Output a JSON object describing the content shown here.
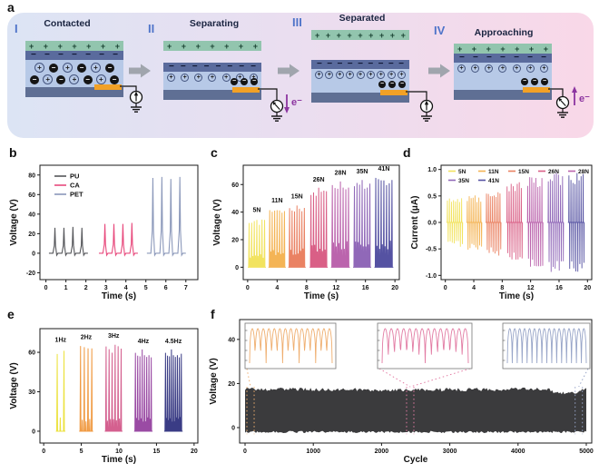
{
  "panel_a": {
    "label": "a",
    "stages": [
      {
        "numeral": "I",
        "title": "Contacted"
      },
      {
        "numeral": "II",
        "title": "Separating"
      },
      {
        "numeral": "III",
        "title": "Separated"
      },
      {
        "numeral": "IV",
        "title": "Approaching"
      }
    ],
    "symbols": {
      "plus": "+",
      "minus": "−",
      "circled_plus": "⊕",
      "circled_minus": "−",
      "electron": "e⁻"
    },
    "colors": {
      "bg_left": "#dce4f4",
      "bg_mid": "#eadef0",
      "bg_right": "#f9d8e8",
      "top_layer": "#92c5ae",
      "charged_layer": "#5a6b9d",
      "dielectric": "#b7c9e7",
      "electrode": "#f2a126",
      "bottom_electrode": "#5f6f94",
      "numeral": "#4f74c9",
      "title": "#1a2440",
      "arrow": "#a0a5ad",
      "electron_flow": "#8c35a0"
    }
  },
  "panel_labels": {
    "b": "b",
    "c": "c",
    "d": "d",
    "e": "e",
    "f": "f"
  },
  "chart_data": [
    {
      "panel": "b",
      "type": "line",
      "xlabel": "Time (s)",
      "ylabel": "Voltage (V)",
      "xlim": [
        -0.3,
        7.6
      ],
      "ylim": [
        -27,
        90
      ],
      "xticks": [
        0,
        1,
        2,
        3,
        4,
        5,
        6,
        7
      ],
      "yticks": [
        -20,
        0,
        20,
        40,
        60,
        80
      ],
      "legend": {
        "position": "top-left"
      },
      "series": [
        {
          "name": "PU",
          "color": "#55565a",
          "peaks": [
            [
              0.45,
              26
            ],
            [
              0.9,
              26
            ],
            [
              1.35,
              27
            ],
            [
              1.8,
              26
            ]
          ]
        },
        {
          "name": "CA",
          "color": "#e84a7d",
          "peaks": [
            [
              2.95,
              30
            ],
            [
              3.4,
              30
            ],
            [
              3.85,
              30
            ],
            [
              4.3,
              31
            ]
          ]
        },
        {
          "name": "PET",
          "color": "#8b98ba",
          "peaks": [
            [
              5.35,
              77
            ],
            [
              5.8,
              78
            ],
            [
              6.25,
              76
            ],
            [
              6.7,
              78
            ]
          ]
        }
      ]
    },
    {
      "panel": "c",
      "type": "spike-groups",
      "xlabel": "Time (s)",
      "ylabel": "Voltage (V)",
      "xlim": [
        -0.6,
        20.6
      ],
      "ylim": [
        -9,
        74
      ],
      "xticks": [
        0,
        4,
        8,
        12,
        16,
        20
      ],
      "yticks": [
        0,
        20,
        40,
        60
      ],
      "groups": [
        {
          "label": "5N",
          "color": "#f2e35f",
          "t": [
            0.2,
            2.3
          ],
          "n": 7,
          "amp": 33
        },
        {
          "label": "11N",
          "color": "#f4b455",
          "t": [
            3.0,
            5.0
          ],
          "n": 7,
          "amp": 40
        },
        {
          "label": "15N",
          "color": "#ea8263",
          "t": [
            5.7,
            7.7
          ],
          "n": 7,
          "amp": 43
        },
        {
          "label": "26N",
          "color": "#d95f86",
          "t": [
            8.6,
            10.7
          ],
          "n": 7,
          "amp": 55
        },
        {
          "label": "28N",
          "color": "#bb64ad",
          "t": [
            11.5,
            13.7
          ],
          "n": 7,
          "amp": 60
        },
        {
          "label": "35N",
          "color": "#9068b8",
          "t": [
            14.5,
            16.6
          ],
          "n": 7,
          "amp": 61
        },
        {
          "label": "41N",
          "color": "#5552a2",
          "t": [
            17.4,
            19.6
          ],
          "n": 7,
          "amp": 63
        }
      ]
    },
    {
      "panel": "d",
      "type": "bipolar-groups",
      "xlabel": "Time (s)",
      "ylabel": "Current (μA)",
      "xlim": [
        -0.6,
        20.6
      ],
      "ylim": [
        -1.08,
        1.08
      ],
      "xticks": [
        0,
        4,
        8,
        12,
        16,
        20
      ],
      "yticks": [
        -1.0,
        -0.5,
        0.0,
        0.5,
        1.0
      ],
      "ydecimals": 1,
      "legend": {
        "rows": [
          [
            "5N",
            "11N",
            "15N",
            "26N",
            "28N"
          ],
          [
            "35N",
            "41N"
          ]
        ]
      },
      "groups": [
        {
          "label": "5N",
          "color": "#f2e35f",
          "t": [
            0.3,
            2.3
          ],
          "n": 8,
          "amp": 0.4
        },
        {
          "label": "11N",
          "color": "#f4b455",
          "t": [
            3.1,
            5.0
          ],
          "n": 8,
          "amp": 0.45
        },
        {
          "label": "15N",
          "color": "#ea8263",
          "t": [
            5.8,
            7.7
          ],
          "n": 8,
          "amp": 0.55
        },
        {
          "label": "26N",
          "color": "#d95f86",
          "t": [
            8.7,
            10.7
          ],
          "n": 8,
          "amp": 0.67
        },
        {
          "label": "28N",
          "color": "#bb64ad",
          "t": [
            11.6,
            13.6
          ],
          "n": 8,
          "amp": 0.75
        },
        {
          "label": "35N",
          "color": "#9068b8",
          "t": [
            14.5,
            16.5
          ],
          "n": 8,
          "amp": 0.82
        },
        {
          "label": "41N",
          "color": "#5552a2",
          "t": [
            17.4,
            19.4
          ],
          "n": 8,
          "amp": 0.83
        }
      ]
    },
    {
      "panel": "e",
      "type": "spike-groups",
      "xlabel": "Time (s)",
      "ylabel": "Voltage (V)",
      "xlim": [
        -0.5,
        20.5
      ],
      "ylim": [
        -9,
        78
      ],
      "xticks": [
        0,
        5,
        10,
        15,
        20
      ],
      "yticks": [
        0,
        30,
        60
      ],
      "groups": [
        {
          "label": "1Hz",
          "color": "#ece23f",
          "t": [
            1.8,
            2.7
          ],
          "n": 2,
          "amp": 61
        },
        {
          "label": "2Hz",
          "color": "#f09a42",
          "t": [
            4.9,
            6.4
          ],
          "n": 4,
          "amp": 63
        },
        {
          "label": "3Hz",
          "color": "#d4608f",
          "t": [
            8.3,
            10.3
          ],
          "n": 6,
          "amp": 64
        },
        {
          "label": "4Hz",
          "color": "#9a4ba4",
          "t": [
            12.2,
            14.3
          ],
          "n": 8,
          "amp": 60
        },
        {
          "label": "4.5Hz",
          "color": "#3a3c85",
          "t": [
            16.2,
            18.3
          ],
          "n": 9,
          "amp": 60
        }
      ]
    },
    {
      "panel": "f",
      "type": "band",
      "xlabel": "Cycle",
      "ylabel": "Voltage (V)",
      "xlim": [
        -80,
        5080
      ],
      "ylim": [
        -7,
        49
      ],
      "xticks": [
        0,
        1000,
        2000,
        3000,
        4000,
        5000
      ],
      "yticks": [
        0,
        20,
        40
      ],
      "band": {
        "color": "#3b3b3d",
        "x": [
          0,
          5000
        ],
        "bottom": -2,
        "top_profile": [
          [
            0,
            17.5
          ],
          [
            2000,
            17.0
          ],
          [
            4000,
            17.4
          ],
          [
            4450,
            17.4
          ],
          [
            4550,
            15.7
          ],
          [
            4850,
            15.9
          ],
          [
            4950,
            17.1
          ],
          [
            5000,
            17.2
          ]
        ]
      },
      "insets": [
        {
          "color": "#efae6f",
          "cycles": 15,
          "anchor": 80,
          "connect": [
            "bl"
          ]
        },
        {
          "color": "#e27ba3",
          "cycles": 14,
          "anchor": 2420,
          "connect": [
            "bl",
            "br"
          ]
        },
        {
          "color": "#98a5c8",
          "cycles": 16,
          "anchor": 4890,
          "connect": [
            "br"
          ]
        }
      ]
    }
  ]
}
